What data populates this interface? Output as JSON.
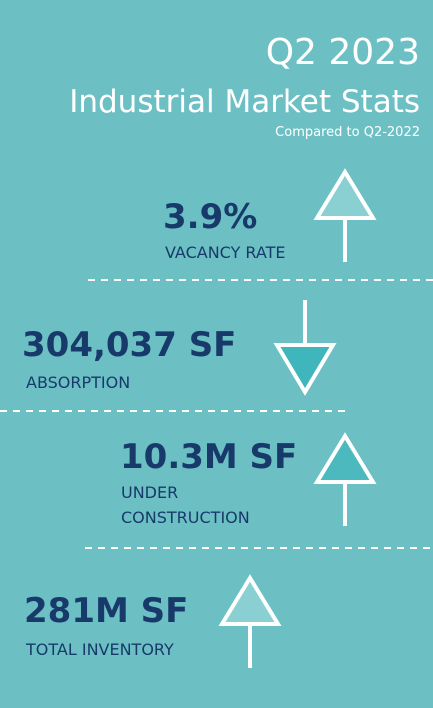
{
  "header": {
    "title": "Q2 2023",
    "subtitle": "Industrial Market Stats",
    "note": "Compared to Q2-2022"
  },
  "stats": [
    {
      "value": "3.9%",
      "label": [
        "VACANCY RATE"
      ],
      "direction": "up"
    },
    {
      "value": "304,037 SF",
      "label": [
        "ABSORPTION"
      ],
      "direction": "down"
    },
    {
      "value": "10.3M SF",
      "label": [
        "UNDER",
        "CONSTRUCTION"
      ],
      "direction": "up"
    },
    {
      "value": "281M SF",
      "label": [
        "TOTAL INVENTORY"
      ],
      "direction": "up"
    }
  ]
}
